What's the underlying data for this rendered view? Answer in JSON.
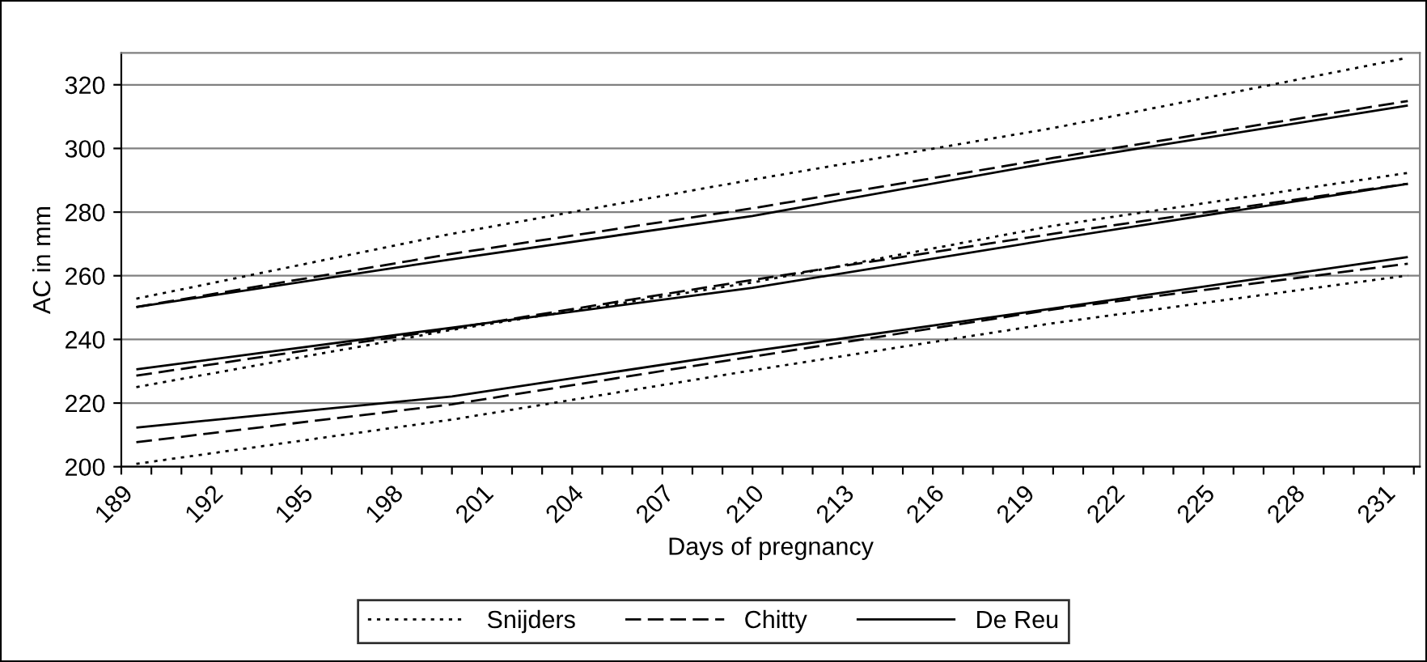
{
  "chart_data": {
    "type": "line",
    "xlabel": "Days of pregnancy",
    "ylabel": "AC in mm",
    "xlim": [
      189,
      232.2
    ],
    "ylim": [
      200,
      330
    ],
    "xticks": [
      189,
      {
        "value": 190,
        "label": null
      },
      {
        "value": 191,
        "label": null
      },
      192,
      {
        "value": 193,
        "label": null
      },
      {
        "value": 194,
        "label": null
      },
      195,
      {
        "value": 196,
        "label": null
      },
      {
        "value": 197,
        "label": null
      },
      198,
      {
        "value": 199,
        "label": null
      },
      {
        "value": 200,
        "label": null
      },
      201,
      {
        "value": 202,
        "label": null
      },
      {
        "value": 203,
        "label": null
      },
      204,
      {
        "value": 205,
        "label": null
      },
      {
        "value": 206,
        "label": null
      },
      207,
      {
        "value": 208,
        "label": null
      },
      {
        "value": 209,
        "label": null
      },
      210,
      {
        "value": 211,
        "label": null
      },
      {
        "value": 212,
        "label": null
      },
      213,
      {
        "value": 214,
        "label": null
      },
      {
        "value": 215,
        "label": null
      },
      216,
      {
        "value": 217,
        "label": null
      },
      {
        "value": 218,
        "label": null
      },
      219,
      {
        "value": 220,
        "label": null
      },
      {
        "value": 221,
        "label": null
      },
      222,
      {
        "value": 223,
        "label": null
      },
      {
        "value": 224,
        "label": null
      },
      225,
      {
        "value": 226,
        "label": null
      },
      {
        "value": 227,
        "label": null
      },
      228,
      {
        "value": 229,
        "label": null
      },
      {
        "value": 230,
        "label": null
      },
      231,
      {
        "value": 232,
        "label": null
      }
    ],
    "yticks": [
      200,
      220,
      240,
      260,
      280,
      300,
      320
    ],
    "grid": "y",
    "legend": "bottom",
    "x": [
      189.5,
      200,
      210,
      220,
      231.8
    ],
    "series": [
      {
        "name": "Snijders",
        "color": "#000000",
        "line_style": "dotted",
        "values": [
          252.8,
          273.2,
          290.2,
          306.4,
          328.5
        ]
      },
      {
        "color": "#000000",
        "line_style": "dotted",
        "values": [
          225,
          243,
          257.9,
          275.7,
          292.3
        ]
      },
      {
        "color": "#000000",
        "line_style": "dotted",
        "values": [
          200.9,
          214.8,
          230.3,
          245.1,
          260.1
        ]
      },
      {
        "name": "Chitty",
        "color": "#000000",
        "line_style": "dashed",
        "values": [
          250.2,
          266.9,
          281.2,
          297,
          314.9
        ]
      },
      {
        "color": "#000000",
        "line_style": "dashed",
        "values": [
          228.6,
          243.4,
          258.7,
          273.2,
          288.9
        ]
      },
      {
        "color": "#000000",
        "line_style": "dashed",
        "values": [
          207.7,
          219.6,
          234.6,
          249.4,
          263.8
        ]
      },
      {
        "name": "De Reu",
        "color": "#000000",
        "line_style": "solid",
        "values": [
          250.2,
          265.2,
          278.8,
          295.7,
          313.5
        ]
      },
      {
        "color": "#000000",
        "line_style": "solid",
        "values": [
          230.6,
          243.7,
          256.2,
          271.5,
          288.9
        ]
      },
      {
        "color": "#000000",
        "line_style": "solid",
        "values": [
          212.3,
          222.1,
          236.3,
          249.7,
          265.9
        ]
      }
    ]
  }
}
